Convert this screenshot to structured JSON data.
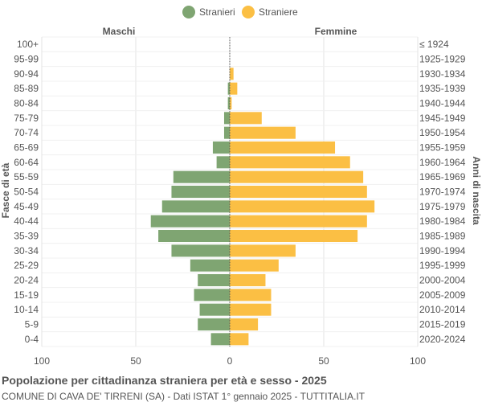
{
  "chart_data": {
    "type": "bar",
    "orientation": "horizontal-pyramid",
    "title": "Popolazione per cittadinanza straniera per età e sesso - 2025",
    "subtitle": "COMUNE DI CAVA DE' TIRRENI (SA) - Dati ISTAT 1° gennaio 2025 - TUTTITALIA.IT",
    "left_header": "Maschi",
    "right_header": "Femmine",
    "ylabel_left": "Fasce di età",
    "ylabel_right": "Anni di nascita",
    "xlim": [
      -100,
      100
    ],
    "x_ticks": [
      -100,
      -50,
      0,
      50,
      100
    ],
    "x_tick_labels": [
      "100",
      "50",
      "0",
      "50",
      "100"
    ],
    "grid": true,
    "legend_position": "top-center",
    "categories": [
      "100+",
      "95-99",
      "90-94",
      "85-89",
      "80-84",
      "75-79",
      "70-74",
      "65-69",
      "60-64",
      "55-59",
      "50-54",
      "45-49",
      "40-44",
      "35-39",
      "30-34",
      "25-29",
      "20-24",
      "15-19",
      "10-14",
      "5-9",
      "0-4"
    ],
    "birth_years": [
      "≤ 1924",
      "1925-1929",
      "1930-1934",
      "1935-1939",
      "1940-1944",
      "1945-1949",
      "1950-1954",
      "1955-1959",
      "1960-1964",
      "1965-1969",
      "1970-1974",
      "1975-1979",
      "1980-1984",
      "1985-1989",
      "1990-1994",
      "1995-1999",
      "2000-2004",
      "2005-2009",
      "2010-2014",
      "2015-2019",
      "2020-2024"
    ],
    "series": [
      {
        "name": "Stranieri",
        "color": "#7fa572",
        "side": "left",
        "values": [
          0,
          0,
          0,
          1,
          1,
          3,
          3,
          9,
          7,
          30,
          31,
          36,
          42,
          38,
          31,
          21,
          17,
          19,
          16,
          17,
          10
        ]
      },
      {
        "name": "Straniere",
        "color": "#fbbf44",
        "side": "right",
        "values": [
          0,
          0,
          2,
          4,
          1,
          17,
          35,
          56,
          64,
          71,
          73,
          77,
          73,
          68,
          35,
          26,
          19,
          22,
          22,
          15,
          10
        ]
      }
    ]
  }
}
